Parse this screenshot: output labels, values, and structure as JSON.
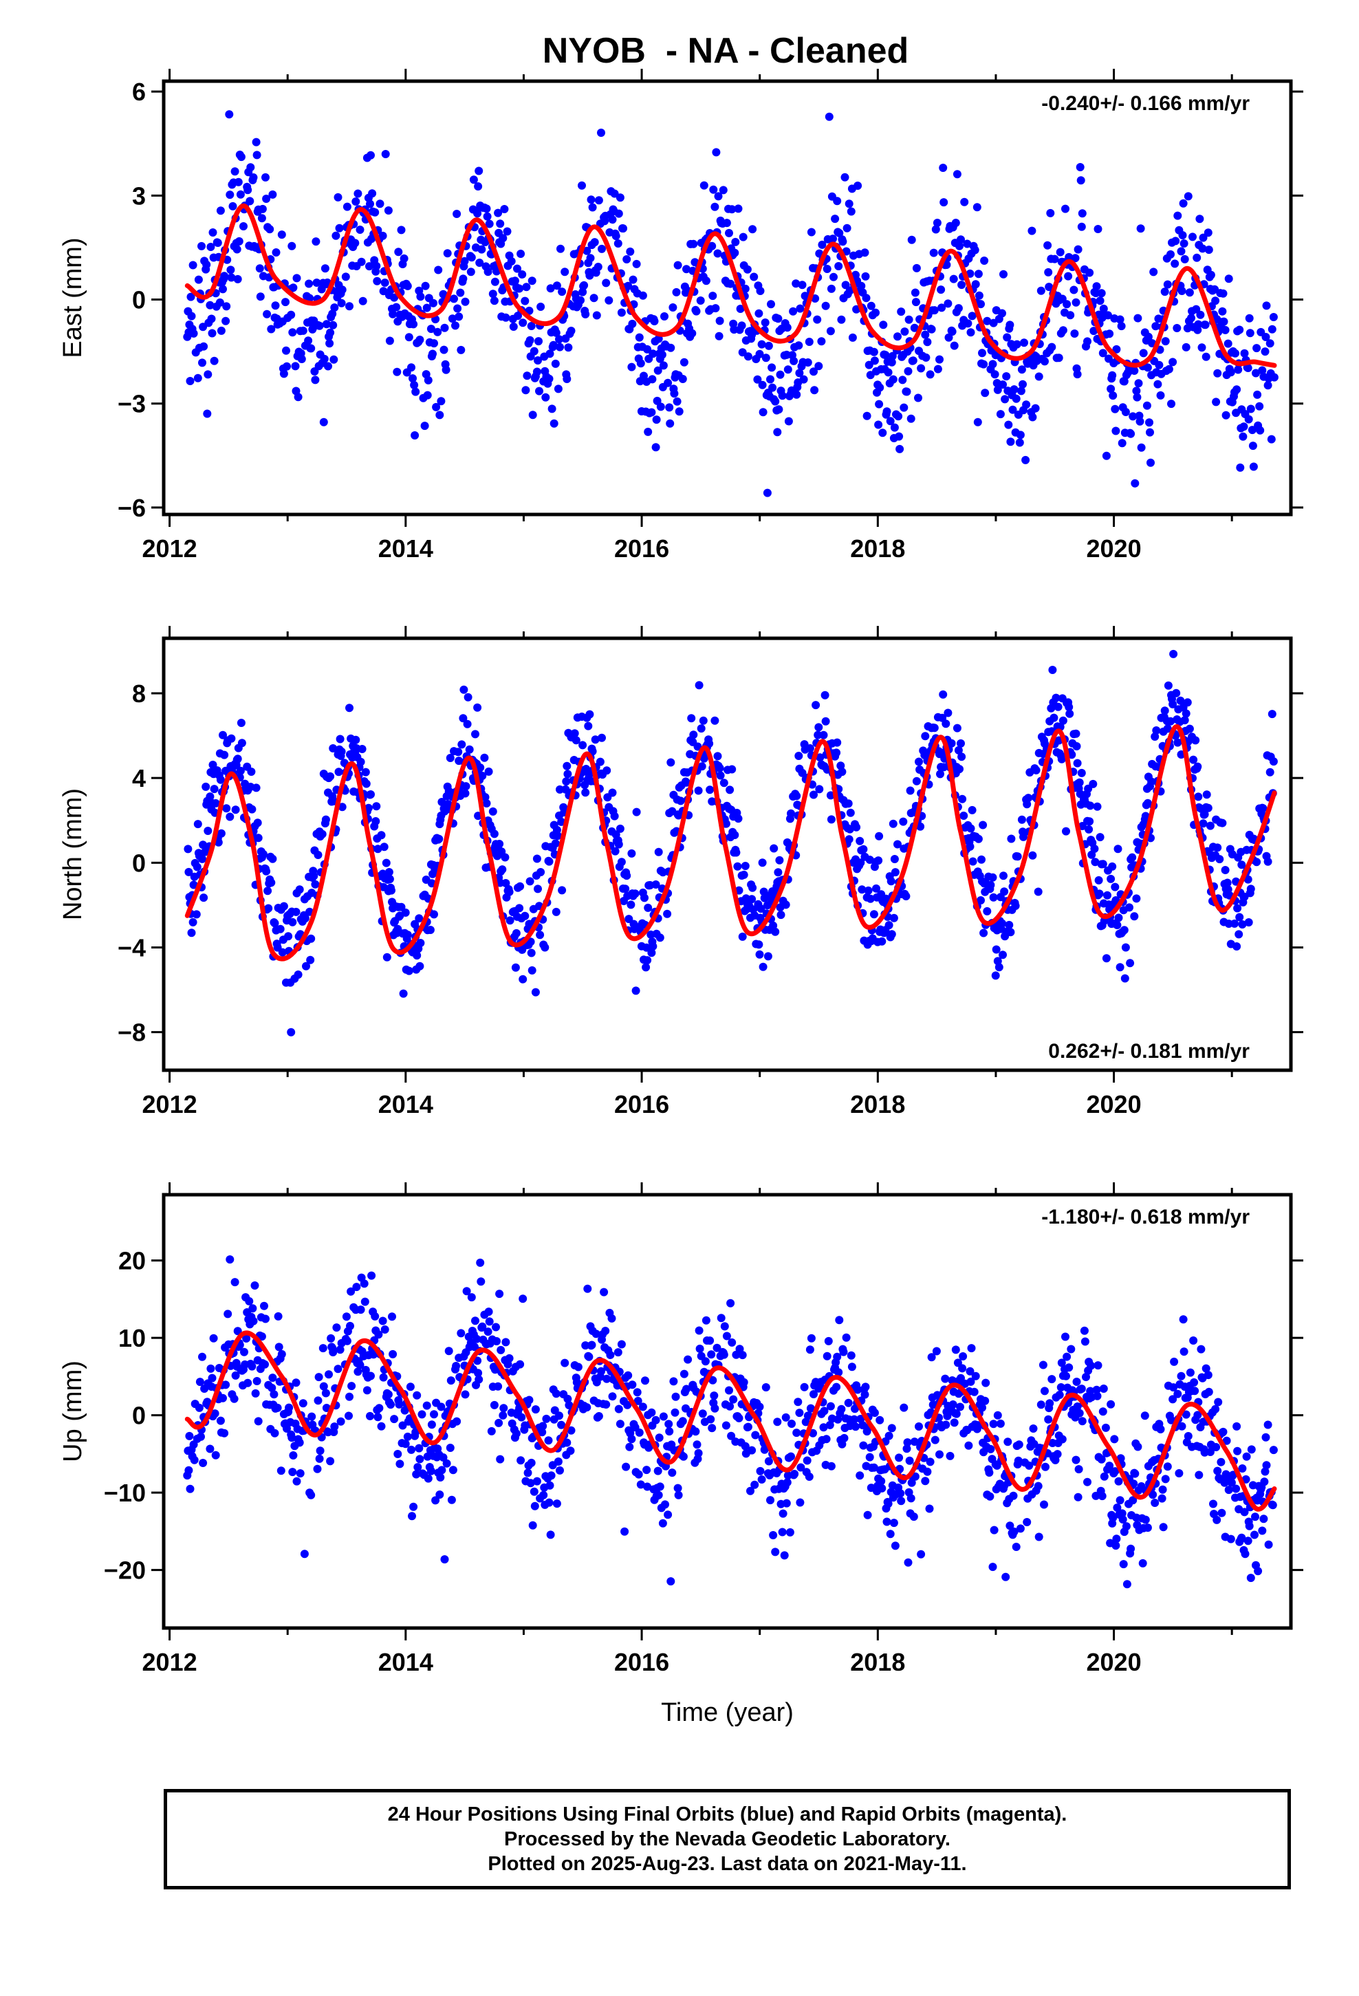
{
  "title": "NYOB  - NA - Cleaned",
  "colors": {
    "final_orbits": "#0000ff",
    "model_fit": "#ff0000",
    "frame": "#000000"
  },
  "chart_data": [
    {
      "type": "scatter",
      "name": "east",
      "ylabel": "East (mm)",
      "xlabel": "",
      "rate_text": "-0.240+/- 0.166 mm/yr",
      "xlim": [
        2011.95,
        2021.5
      ],
      "ylim": [
        -6.2,
        6.3
      ],
      "x_ticks": [
        2012,
        2014,
        2016,
        2018,
        2020
      ],
      "y_ticks": [
        -6,
        -3,
        0,
        3,
        6
      ],
      "y_tick_labels": [
        "−6",
        "−3",
        "0",
        "3",
        "6"
      ],
      "x_tick_labels": [
        "2012",
        "2014",
        "2016",
        "2018",
        "2020"
      ],
      "data_start": 2012.15,
      "data_end": 2021.36,
      "trend": {
        "intercept_at_2012": 0.9,
        "rate": -0.24
      },
      "seasonal": {
        "amplitude": 1.8,
        "peak_phase": 0.65
      },
      "scatter_sd": 1.15,
      "fit_curve": [
        [
          2012.15,
          0.4
        ],
        [
          2012.35,
          0.2
        ],
        [
          2012.62,
          2.7
        ],
        [
          2012.9,
          0.6
        ],
        [
          2013.3,
          0.0
        ],
        [
          2013.62,
          2.6
        ],
        [
          2013.95,
          0.1
        ],
        [
          2014.3,
          -0.3
        ],
        [
          2014.6,
          2.3
        ],
        [
          2014.95,
          -0.2
        ],
        [
          2015.3,
          -0.5
        ],
        [
          2015.6,
          2.1
        ],
        [
          2015.95,
          -0.5
        ],
        [
          2016.3,
          -0.8
        ],
        [
          2016.62,
          1.9
        ],
        [
          2016.95,
          -0.7
        ],
        [
          2017.3,
          -1.0
        ],
        [
          2017.62,
          1.6
        ],
        [
          2017.95,
          -0.9
        ],
        [
          2018.3,
          -1.2
        ],
        [
          2018.62,
          1.4
        ],
        [
          2018.95,
          -1.2
        ],
        [
          2019.3,
          -1.5
        ],
        [
          2019.62,
          1.1
        ],
        [
          2019.95,
          -1.4
        ],
        [
          2020.3,
          -1.7
        ],
        [
          2020.62,
          0.9
        ],
        [
          2020.95,
          -1.6
        ],
        [
          2021.2,
          -1.8
        ],
        [
          2021.36,
          -1.9
        ]
      ]
    },
    {
      "type": "scatter",
      "name": "north",
      "ylabel": "North (mm)",
      "xlabel": "",
      "rate_text": "0.262+/- 0.181 mm/yr",
      "xlim": [
        2011.95,
        2021.5
      ],
      "ylim": [
        -9.8,
        10.6
      ],
      "x_ticks": [
        2012,
        2014,
        2016,
        2018,
        2020
      ],
      "y_ticks": [
        -8,
        -4,
        0,
        4,
        8
      ],
      "y_tick_labels": [
        "−8",
        "−4",
        "0",
        "4",
        "8"
      ],
      "x_tick_labels": [
        "2012",
        "2014",
        "2016",
        "2018",
        "2020"
      ],
      "data_start": 2012.15,
      "data_end": 2021.36,
      "trend": {
        "intercept_at_2012": 0.0,
        "rate": 0.262
      },
      "seasonal": {
        "amplitude": 4.3,
        "peak_phase": 0.52
      },
      "scatter_sd": 1.2,
      "fit_curve": [
        [
          2012.15,
          -2.5
        ],
        [
          2012.35,
          0.5
        ],
        [
          2012.52,
          4.2
        ],
        [
          2012.7,
          1.0
        ],
        [
          2012.88,
          -4.3
        ],
        [
          2013.2,
          -2.8
        ],
        [
          2013.52,
          4.6
        ],
        [
          2013.7,
          0.8
        ],
        [
          2013.9,
          -4.1
        ],
        [
          2014.2,
          -2.2
        ],
        [
          2014.52,
          4.9
        ],
        [
          2014.7,
          0.7
        ],
        [
          2014.9,
          -3.8
        ],
        [
          2015.2,
          -1.7
        ],
        [
          2015.52,
          5.1
        ],
        [
          2015.7,
          1.0
        ],
        [
          2015.9,
          -3.5
        ],
        [
          2016.2,
          -1.4
        ],
        [
          2016.52,
          5.4
        ],
        [
          2016.7,
          1.0
        ],
        [
          2016.9,
          -3.3
        ],
        [
          2017.2,
          -1.0
        ],
        [
          2017.52,
          5.7
        ],
        [
          2017.7,
          1.2
        ],
        [
          2017.9,
          -3.0
        ],
        [
          2018.2,
          -0.7
        ],
        [
          2018.52,
          5.9
        ],
        [
          2018.7,
          1.5
        ],
        [
          2018.9,
          -2.8
        ],
        [
          2019.2,
          -0.6
        ],
        [
          2019.52,
          6.2
        ],
        [
          2019.7,
          1.5
        ],
        [
          2019.9,
          -2.5
        ],
        [
          2020.2,
          -0.2
        ],
        [
          2020.52,
          6.4
        ],
        [
          2020.7,
          2.0
        ],
        [
          2020.9,
          -2.2
        ],
        [
          2021.15,
          0.0
        ],
        [
          2021.36,
          3.3
        ]
      ]
    },
    {
      "type": "scatter",
      "name": "up",
      "ylabel": "Up (mm)",
      "xlabel": "Time (year)",
      "rate_text": "-1.180+/- 0.618 mm/yr",
      "xlim": [
        2011.95,
        2021.5
      ],
      "ylim": [
        -27.5,
        28.5
      ],
      "x_ticks": [
        2012,
        2014,
        2016,
        2018,
        2020
      ],
      "y_ticks": [
        -20,
        -10,
        0,
        10,
        20
      ],
      "y_tick_labels": [
        "−20",
        "−10",
        "0",
        "10",
        "20"
      ],
      "x_tick_labels": [
        "2012",
        "2014",
        "2016",
        "2018",
        "2020"
      ],
      "data_start": 2012.15,
      "data_end": 2021.36,
      "trend": {
        "intercept_at_2012": 4.5,
        "rate": -1.18
      },
      "seasonal": {
        "amplitude": 6.5,
        "peak_phase": 0.65
      },
      "scatter_sd": 4.2,
      "fit_curve": [
        [
          2012.15,
          -0.5
        ],
        [
          2012.3,
          -0.8
        ],
        [
          2012.62,
          10.5
        ],
        [
          2012.95,
          5.0
        ],
        [
          2013.25,
          -2.5
        ],
        [
          2013.62,
          9.5
        ],
        [
          2013.95,
          3.5
        ],
        [
          2014.25,
          -3.5
        ],
        [
          2014.62,
          8.3
        ],
        [
          2014.95,
          2.5
        ],
        [
          2015.25,
          -4.5
        ],
        [
          2015.62,
          7.0
        ],
        [
          2015.95,
          1.0
        ],
        [
          2016.25,
          -6.0
        ],
        [
          2016.62,
          6.0
        ],
        [
          2016.95,
          0.0
        ],
        [
          2017.25,
          -7.0
        ],
        [
          2017.62,
          4.8
        ],
        [
          2017.95,
          -1.5
        ],
        [
          2018.25,
          -8.0
        ],
        [
          2018.62,
          3.8
        ],
        [
          2018.95,
          -2.5
        ],
        [
          2019.25,
          -9.5
        ],
        [
          2019.62,
          2.5
        ],
        [
          2019.95,
          -4.0
        ],
        [
          2020.25,
          -10.5
        ],
        [
          2020.62,
          1.3
        ],
        [
          2020.95,
          -4.5
        ],
        [
          2021.2,
          -12.0
        ],
        [
          2021.36,
          -9.5
        ]
      ]
    }
  ],
  "footer": {
    "line1": "24 Hour Positions Using Final Orbits (blue) and Rapid Orbits (magenta).",
    "line2": "Processed by the Nevada Geodetic Laboratory.",
    "line3": "Plotted on 2025-Aug-23. Last data on 2021-May-11."
  }
}
